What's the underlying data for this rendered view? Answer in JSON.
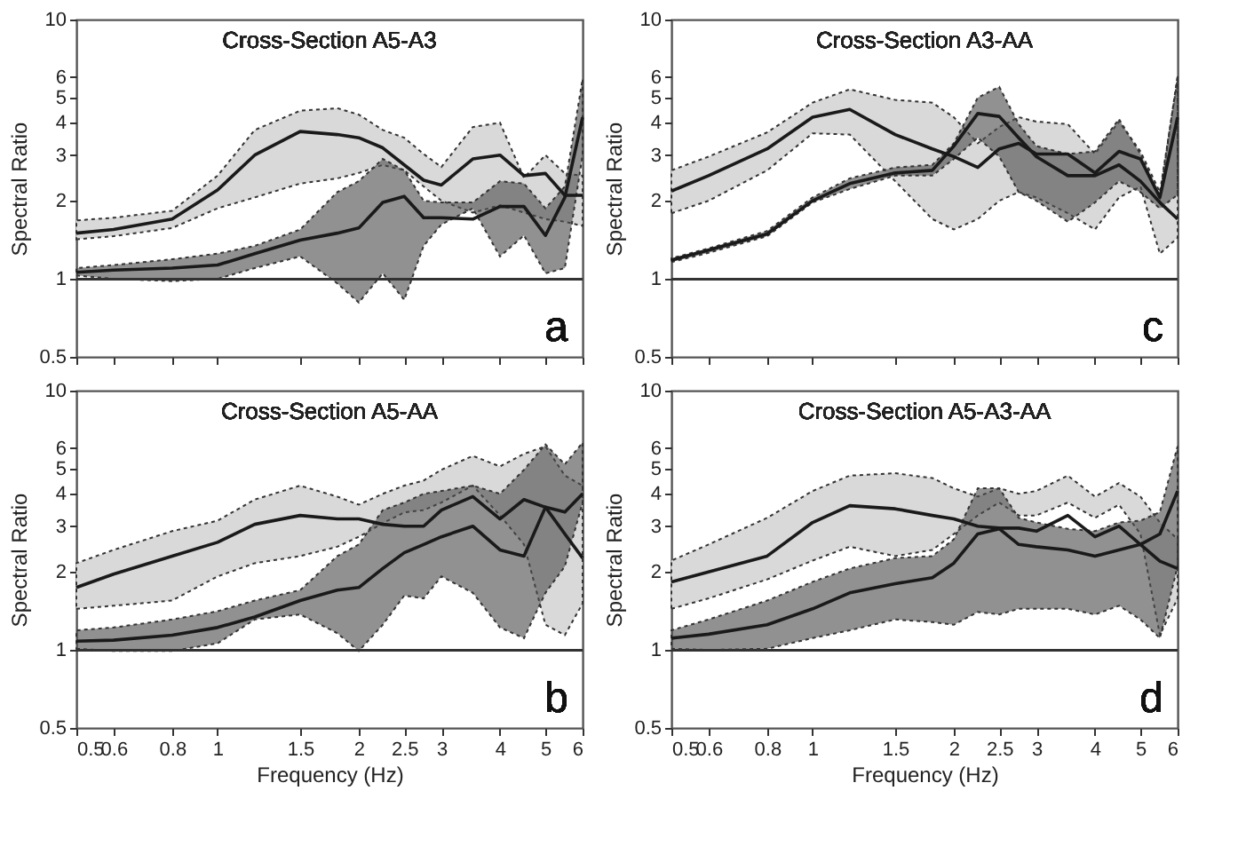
{
  "chart_data": [
    {
      "type": "line",
      "title": "Cross-Section  A5-A3",
      "ylabel": "Spectral Ratio",
      "annotations": [
        "a"
      ],
      "log": "xy",
      "tick_labels": "y",
      "grid": false,
      "xlim": [
        0.5,
        6
      ],
      "ylim": [
        0.5,
        10
      ],
      "xticks": [
        0.5,
        0.6,
        0.8,
        1,
        1.5,
        2,
        2.5,
        3,
        4,
        5,
        6
      ],
      "yticks": [
        0.5,
        1,
        2,
        3,
        4,
        5,
        6,
        10
      ],
      "ref_lines": [
        {
          "axis": "y",
          "value": 1,
          "color": "#333333"
        }
      ],
      "x": [
        0.5,
        0.6,
        0.8,
        1,
        1.2,
        1.5,
        1.8,
        2,
        2.25,
        2.5,
        2.75,
        3,
        3.5,
        4,
        4.5,
        5,
        5.5,
        6
      ],
      "series": [
        {
          "color": "#1a1a1a",
          "values": [
            1.5,
            1.55,
            1.7,
            2.2,
            3.0,
            3.7,
            3.6,
            3.5,
            3.2,
            2.75,
            2.4,
            2.3,
            2.9,
            3.0,
            2.5,
            2.55,
            2.1,
            2.1
          ],
          "upper": [
            1.68,
            1.72,
            1.83,
            2.5,
            3.75,
            4.45,
            4.55,
            4.3,
            3.75,
            3.5,
            3.03,
            2.7,
            3.85,
            4.0,
            2.45,
            3.0,
            2.55,
            2.5
          ],
          "lower": [
            1.42,
            1.46,
            1.57,
            1.87,
            2.06,
            2.33,
            2.44,
            2.56,
            2.75,
            2.62,
            2.27,
            2.0,
            1.8,
            1.92,
            1.8,
            1.7,
            1.66,
            1.6
          ]
        },
        {
          "color": "#1a1a1a",
          "values": [
            1.06,
            1.08,
            1.1,
            1.13,
            1.25,
            1.41,
            1.5,
            1.57,
            1.97,
            2.08,
            1.72,
            1.72,
            1.7,
            1.9,
            1.9,
            1.47,
            2.06,
            4.2
          ],
          "upper": [
            1.1,
            1.13,
            1.19,
            1.25,
            1.34,
            1.55,
            2.16,
            2.38,
            2.9,
            2.62,
            2.0,
            1.97,
            1.97,
            2.38,
            2.33,
            1.87,
            2.27,
            5.9
          ],
          "lower": [
            1.03,
            1.0,
            0.98,
            1.0,
            1.1,
            1.22,
            0.96,
            0.81,
            1.05,
            0.83,
            1.34,
            1.62,
            1.87,
            1.22,
            1.47,
            1.05,
            1.1,
            3.0
          ]
        }
      ]
    },
    {
      "type": "line",
      "title": "Cross-Section  A3-AA",
      "ylabel": "Spectral Ratio",
      "annotations": [
        "c"
      ],
      "log": "xy",
      "tick_labels": "y",
      "grid": false,
      "xlim": [
        0.5,
        6
      ],
      "ylim": [
        0.5,
        10
      ],
      "xticks": [
        0.5,
        0.6,
        0.8,
        1,
        1.5,
        2,
        2.5,
        3,
        4,
        5,
        6
      ],
      "yticks": [
        0.5,
        1,
        2,
        3,
        4,
        5,
        6,
        10
      ],
      "ref_lines": [
        {
          "axis": "y",
          "value": 1,
          "color": "#333333"
        }
      ],
      "x": [
        0.5,
        0.6,
        0.8,
        1,
        1.2,
        1.5,
        1.8,
        2,
        2.25,
        2.5,
        2.75,
        3,
        3.5,
        4,
        4.5,
        5,
        5.5,
        6
      ],
      "series": [
        {
          "color": "#1a1a1a",
          "values": [
            2.18,
            2.5,
            3.17,
            4.2,
            4.5,
            3.6,
            3.17,
            2.96,
            2.69,
            3.17,
            3.33,
            3.03,
            3.03,
            2.56,
            3.1,
            2.9,
            2.06,
            4.2
          ],
          "upper": [
            2.62,
            2.96,
            3.67,
            4.78,
            5.38,
            4.9,
            4.78,
            4.2,
            3.33,
            3.85,
            4.2,
            4.04,
            3.95,
            3.03,
            4.04,
            3.1,
            2.16,
            5.9
          ],
          "lower": [
            1.79,
            2.0,
            2.62,
            3.64,
            3.6,
            2.38,
            1.7,
            1.55,
            1.7,
            2.0,
            2.16,
            2.06,
            1.79,
            1.55,
            2.06,
            2.27,
            1.25,
            1.44
          ]
        },
        {
          "color": "#1a1a1a",
          "values": [
            1.18,
            1.29,
            1.49,
            2.0,
            2.33,
            2.56,
            2.62,
            3.25,
            4.34,
            4.23,
            3.5,
            2.96,
            2.5,
            2.5,
            2.75,
            2.38,
            1.97,
            1.7
          ],
          "upper": [
            1.2,
            1.31,
            1.53,
            2.06,
            2.44,
            2.69,
            2.75,
            3.33,
            5.0,
            5.5,
            3.95,
            3.25,
            3.03,
            3.1,
            4.13,
            3.03,
            2.06,
            6.1
          ],
          "lower": [
            1.16,
            1.26,
            1.46,
            1.97,
            2.22,
            2.5,
            2.5,
            2.9,
            3.5,
            2.96,
            2.16,
            2.0,
            1.66,
            1.97,
            2.38,
            2.16,
            1.87,
            2.11
          ]
        }
      ]
    },
    {
      "type": "line",
      "title": "Cross-Section  A5-AA",
      "xlabel": "Frequency (Hz)",
      "ylabel": "Spectral Ratio",
      "annotations": [
        "b"
      ],
      "log": "xy",
      "grid": false,
      "xlim": [
        0.5,
        6
      ],
      "ylim": [
        0.5,
        10
      ],
      "xticks": [
        0.5,
        0.6,
        0.8,
        1,
        1.5,
        2,
        2.5,
        3,
        4,
        5,
        6
      ],
      "yticks": [
        0.5,
        1,
        2,
        3,
        4,
        5,
        6,
        10
      ],
      "ref_lines": [
        {
          "axis": "y",
          "value": 1,
          "color": "#333333"
        }
      ],
      "x": [
        0.5,
        0.6,
        0.8,
        1,
        1.2,
        1.5,
        1.8,
        2,
        2.25,
        2.5,
        2.75,
        3,
        3.5,
        4,
        4.5,
        5,
        5.5,
        6
      ],
      "series": [
        {
          "color": "#1a1a1a",
          "values": [
            1.74,
            1.96,
            2.3,
            2.6,
            3.05,
            3.3,
            3.2,
            3.2,
            3.05,
            3.0,
            3.0,
            3.46,
            3.9,
            3.2,
            3.8,
            3.55,
            2.8,
            2.26
          ],
          "upper": [
            2.16,
            2.43,
            2.87,
            3.15,
            3.8,
            4.3,
            3.9,
            3.63,
            4.0,
            4.3,
            4.5,
            4.95,
            5.6,
            5.1,
            5.7,
            6.1,
            4.7,
            4.3
          ],
          "lower": [
            1.44,
            1.48,
            1.55,
            1.92,
            2.16,
            2.3,
            2.5,
            2.73,
            3.08,
            3.39,
            3.46,
            3.7,
            4.3,
            3.3,
            2.55,
            1.25,
            1.14,
            1.51
          ]
        },
        {
          "color": "#1a1a1a",
          "values": [
            1.08,
            1.09,
            1.14,
            1.22,
            1.34,
            1.55,
            1.7,
            1.74,
            2.06,
            2.37,
            2.55,
            2.73,
            3.0,
            2.43,
            2.3,
            3.55,
            3.4,
            4.0
          ],
          "upper": [
            1.19,
            1.22,
            1.31,
            1.41,
            1.55,
            1.7,
            2.3,
            2.55,
            3.46,
            3.7,
            4.0,
            4.1,
            4.3,
            4.0,
            4.95,
            6.2,
            5.2,
            6.3
          ],
          "lower": [
            1.01,
            0.99,
            0.99,
            1.06,
            1.31,
            1.37,
            1.16,
            0.99,
            1.25,
            1.62,
            1.58,
            1.92,
            1.66,
            1.22,
            1.11,
            1.66,
            2.1,
            3.7
          ]
        }
      ]
    },
    {
      "type": "line",
      "title": "Cross-Section  A5-A3-AA",
      "xlabel": "Frequency (Hz)",
      "ylabel": "Spectral Ratio",
      "annotations": [
        "d"
      ],
      "log": "xy",
      "grid": false,
      "xlim": [
        0.5,
        6
      ],
      "ylim": [
        0.5,
        10
      ],
      "xticks": [
        0.5,
        0.6,
        0.8,
        1,
        1.5,
        2,
        2.5,
        3,
        4,
        5,
        6
      ],
      "yticks": [
        0.5,
        1,
        2,
        3,
        4,
        5,
        6,
        10
      ],
      "ref_lines": [
        {
          "axis": "y",
          "value": 1,
          "color": "#333333"
        }
      ],
      "x": [
        0.5,
        0.6,
        0.8,
        1,
        1.2,
        1.5,
        1.8,
        2,
        2.25,
        2.5,
        2.75,
        3,
        3.5,
        4,
        4.5,
        5,
        5.5,
        6
      ],
      "series": [
        {
          "color": "#1a1a1a",
          "values": [
            1.83,
            2.0,
            2.3,
            3.1,
            3.6,
            3.5,
            3.3,
            3.2,
            3.0,
            2.95,
            2.95,
            2.87,
            3.3,
            2.73,
            3.0,
            2.55,
            2.2,
            2.06
          ],
          "upper": [
            2.21,
            2.55,
            3.23,
            4.1,
            4.7,
            4.8,
            4.6,
            4.2,
            3.9,
            4.2,
            4.0,
            4.1,
            4.7,
            3.9,
            4.4,
            3.9,
            3.1,
            2.67
          ],
          "lower": [
            1.44,
            1.58,
            1.87,
            2.21,
            2.5,
            2.3,
            2.43,
            2.8,
            3.3,
            3.7,
            3.3,
            3.3,
            3.7,
            3.23,
            3.63,
            2.8,
            1.14,
            1.58
          ]
        },
        {
          "color": "#1a1a1a",
          "values": [
            1.11,
            1.15,
            1.25,
            1.44,
            1.66,
            1.8,
            1.9,
            2.16,
            2.8,
            2.93,
            2.55,
            2.5,
            2.43,
            2.3,
            2.43,
            2.55,
            2.8,
            4.1
          ],
          "upper": [
            1.19,
            1.31,
            1.55,
            1.83,
            2.06,
            2.26,
            2.3,
            2.67,
            4.2,
            4.2,
            3.23,
            3.1,
            2.93,
            2.87,
            3.1,
            3.15,
            3.4,
            6.1
          ],
          "lower": [
            1.01,
            1.0,
            1.01,
            1.11,
            1.19,
            1.31,
            1.28,
            1.25,
            1.4,
            1.37,
            1.44,
            1.44,
            1.44,
            1.37,
            1.48,
            1.31,
            1.11,
            2.1
          ]
        }
      ]
    }
  ]
}
